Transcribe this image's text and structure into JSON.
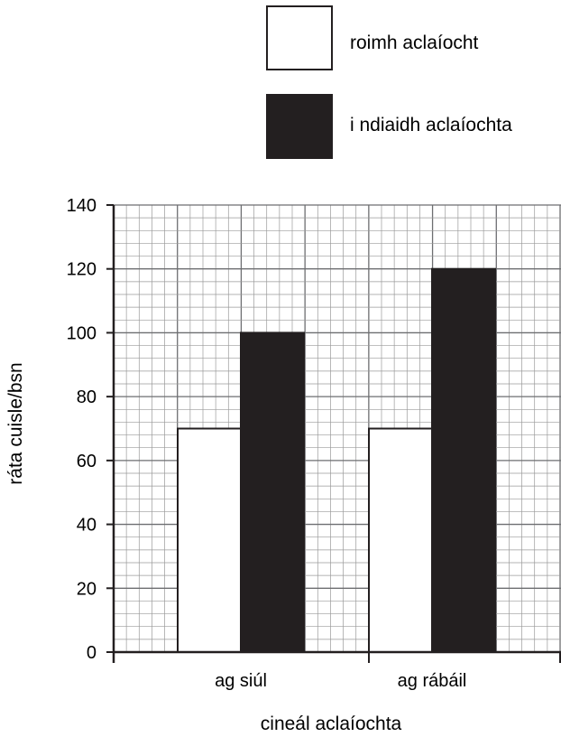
{
  "chart_data": {
    "type": "bar",
    "categories": [
      "ag siúl",
      "ag rábáil"
    ],
    "series": [
      {
        "name": "roimh aclaíocht",
        "values": [
          70,
          70
        ],
        "color": "#ffffff"
      },
      {
        "name": "i ndiaidh aclaíochta",
        "values": [
          100,
          120
        ],
        "color": "#231f20"
      }
    ],
    "xlabel": "cineál aclaíochta",
    "ylabel": "ráta cuisle/bsn",
    "ylim": [
      0,
      140
    ],
    "yticks": [
      0,
      20,
      40,
      60,
      80,
      100,
      120,
      140
    ],
    "grid": true,
    "legend_position": "top-right"
  }
}
